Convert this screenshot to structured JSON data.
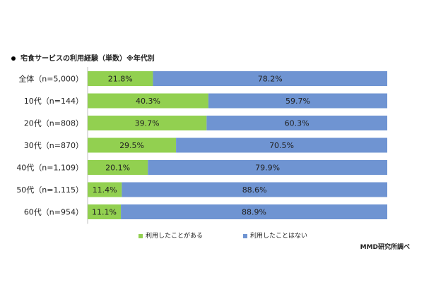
{
  "title": "宅食サービスの利用経験（単数）※年代別",
  "credit": "MMD研究所調べ",
  "colors": {
    "used": "#92d050",
    "not_used": "#6f94d2"
  },
  "chart_data": {
    "type": "bar",
    "orientation": "horizontal-stacked-100",
    "title": "宅食サービスの利用経験（単数）※年代別",
    "categories": [
      "全体（n=5,000）",
      "10代（n=144）",
      "20代（n=808）",
      "30代（n=870）",
      "40代（n=1,109）",
      "50代（n=1,115）",
      "60代（n=954）"
    ],
    "series": [
      {
        "name": "利用したことがある",
        "values": [
          21.8,
          40.3,
          39.7,
          29.5,
          20.1,
          11.4,
          11.1
        ],
        "labels": [
          "21.8%",
          "40.3%",
          "39.7%",
          "29.5%",
          "20.1%",
          "11.4%",
          "11.1%"
        ]
      },
      {
        "name": "利用したことはない",
        "values": [
          78.2,
          59.7,
          60.3,
          70.5,
          79.9,
          88.6,
          88.9
        ],
        "labels": [
          "78.2%",
          "59.7%",
          "60.3%",
          "70.5%",
          "79.9%",
          "88.6%",
          "88.9%"
        ]
      }
    ],
    "xlim": [
      0,
      100
    ],
    "legend": "bottom",
    "grid": false
  }
}
